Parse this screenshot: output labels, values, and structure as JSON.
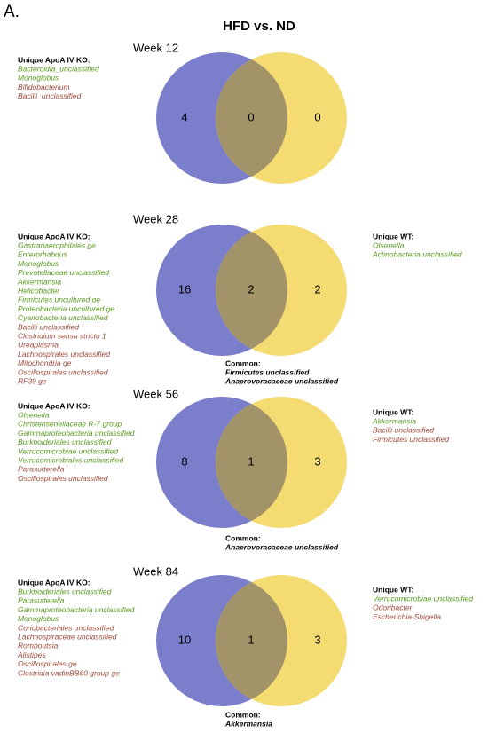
{
  "panel_label": "A.",
  "title": "HFD vs. ND",
  "colors": {
    "ko_circle": "#7b7fcb",
    "wt_circle": "#f4dc72",
    "overlap": "#a39369",
    "green": "#5a9a20",
    "brown": "#9f4a3c",
    "common": "#000000"
  },
  "panels": [
    {
      "week": "Week 12",
      "ko_heading": "Unique ApoA IV KO:",
      "ko_taxa": [
        {
          "name": "Bacteroidia_unclassified",
          "color": "green"
        },
        {
          "name": "Monoglobus",
          "color": "green"
        },
        {
          "name": "Bifidobacterium",
          "color": "brown"
        },
        {
          "name": "Bacilli_unclassified",
          "color": "brown"
        }
      ],
      "counts": [
        4,
        0,
        0
      ]
    },
    {
      "week": "Week 28",
      "ko_heading": "Unique ApoA IV KO:",
      "ko_taxa": [
        {
          "name": "Gastranaerophilales ge",
          "color": "green"
        },
        {
          "name": "Enterorhabdus",
          "color": "green"
        },
        {
          "name": "Monoglobus",
          "color": "green"
        },
        {
          "name": "Prevotellaceae unclassified",
          "color": "green"
        },
        {
          "name": "Akkermansia",
          "color": "green"
        },
        {
          "name": "Helicobacter",
          "color": "green"
        },
        {
          "name": "Firmicutes uncultured ge",
          "color": "green"
        },
        {
          "name": "Proteobacteria uncultured ge",
          "color": "green"
        },
        {
          "name": "Cyanobacteria unclassified",
          "color": "green"
        },
        {
          "name": "Bacilli unclassified",
          "color": "brown"
        },
        {
          "name": "Clostridium sensu stricto 1",
          "color": "brown"
        },
        {
          "name": "Ureaplasma",
          "color": "brown"
        },
        {
          "name": "Lachnospirales unclassified",
          "color": "brown"
        },
        {
          "name": "Mitochondria ge",
          "color": "brown"
        },
        {
          "name": "Oscillospirales unclassified",
          "color": "brown"
        },
        {
          "name": "RF39 ge",
          "color": "brown"
        }
      ],
      "counts": [
        16,
        2,
        2
      ],
      "wt_heading": "Unique WT:",
      "wt_taxa": [
        {
          "name": "Olsenella",
          "color": "green"
        },
        {
          "name": "Actinobacteria unclassified",
          "color": "green"
        }
      ],
      "common_heading": "Common:",
      "common_taxa": [
        "Firmicutes unclassified",
        "Anaerovoracaceae unclassified"
      ]
    },
    {
      "week": "Week 56",
      "ko_heading": "Unique ApoA IV KO:",
      "ko_taxa": [
        {
          "name": "Olsenella",
          "color": "green"
        },
        {
          "name": "Christensenellaceae R-7 group",
          "color": "green"
        },
        {
          "name": "Gammaproteobacteria unclassified",
          "color": "green"
        },
        {
          "name": "Burkholderiales unclassified",
          "color": "green"
        },
        {
          "name": "Verrucomicrobiae unclassified",
          "color": "green"
        },
        {
          "name": "Verrucomicrobiales unclassified",
          "color": "green"
        },
        {
          "name": "Parasutterella",
          "color": "brown"
        },
        {
          "name": "Oscillospirales unclassified",
          "color": "brown"
        }
      ],
      "counts": [
        8,
        1,
        3
      ],
      "wt_heading": "Unique WT:",
      "wt_taxa": [
        {
          "name": "Akkermansia",
          "color": "green"
        },
        {
          "name": "Bacilli unclassified",
          "color": "brown"
        },
        {
          "name": "Firmicutes unclassified",
          "color": "brown"
        }
      ],
      "common_heading": "Common:",
      "common_taxa": [
        "Anaerovoracaceae unclassified"
      ]
    },
    {
      "week": "Week 84",
      "ko_heading": "Unique ApoA IV KO:",
      "ko_taxa": [
        {
          "name": "Burkholderiales unclassified",
          "color": "green"
        },
        {
          "name": "Parasutterella",
          "color": "green"
        },
        {
          "name": "Gammaproteobacteria unclassified",
          "color": "green"
        },
        {
          "name": "Monoglobus",
          "color": "green"
        },
        {
          "name": "Coriobacteriales unclassified",
          "color": "brown"
        },
        {
          "name": "Lachnospiraceae unclassified",
          "color": "brown"
        },
        {
          "name": "Romboutsia",
          "color": "brown"
        },
        {
          "name": "Alistipes",
          "color": "brown"
        },
        {
          "name": "Oscillospirales ge",
          "color": "brown"
        },
        {
          "name": "Clostridia vadinBB60 group ge",
          "color": "brown"
        }
      ],
      "counts": [
        10,
        1,
        3
      ],
      "wt_heading": "Unique WT:",
      "wt_taxa": [
        {
          "name": "Verrucomicrobiae unclassified",
          "color": "green"
        },
        {
          "name": "Odoribacter",
          "color": "brown"
        },
        {
          "name": "Escherichia-Shigella",
          "color": "brown"
        }
      ],
      "common_heading": "Common:",
      "common_taxa": [
        "Akkermansia"
      ]
    }
  ]
}
